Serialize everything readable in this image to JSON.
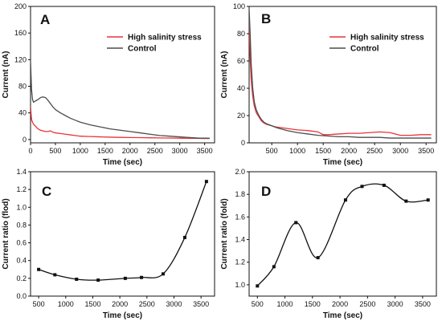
{
  "chart_data": [
    {
      "letter": "A",
      "type": "line",
      "xlabel": "Time (sec)",
      "ylabel": "Current (nA)",
      "xlim": [
        0,
        3700
      ],
      "ylim": [
        -5,
        200
      ],
      "xticks": [
        0,
        500,
        1000,
        1500,
        2000,
        2500,
        3000,
        3500
      ],
      "yticks": [
        0,
        40,
        80,
        120,
        160,
        200
      ],
      "legend_position": "top-right",
      "series": [
        {
          "name": "High salinity stress",
          "color": "#e8343a",
          "x": [
            0,
            20,
            40,
            60,
            100,
            150,
            200,
            250,
            300,
            350,
            400,
            450,
            500,
            600,
            700,
            800,
            900,
            1000,
            1200,
            1400,
            1600,
            1800,
            2000,
            2200,
            2400,
            2600,
            2800,
            3000,
            3200,
            3400,
            3600
          ],
          "y": [
            50,
            30,
            26,
            23,
            20,
            16,
            14,
            13,
            12,
            12,
            13,
            11,
            10,
            9,
            8,
            7,
            6,
            5,
            4.5,
            4,
            3.5,
            3.2,
            3,
            2.8,
            2.6,
            2.4,
            2.2,
            2,
            1.8,
            1.6,
            1.5
          ]
        },
        {
          "name": "Control",
          "color": "#4d4d4d",
          "x": [
            0,
            20,
            40,
            60,
            100,
            150,
            200,
            250,
            300,
            350,
            400,
            450,
            500,
            600,
            700,
            800,
            900,
            1000,
            1200,
            1400,
            1600,
            1800,
            2000,
            2200,
            2400,
            2600,
            2800,
            3000,
            3200,
            3400,
            3600
          ],
          "y": [
            118,
            75,
            60,
            56,
            58,
            60,
            63,
            64,
            63,
            59,
            54,
            49,
            45,
            40,
            36,
            32,
            29,
            26,
            22,
            19,
            16,
            14,
            12,
            10,
            8,
            6,
            5,
            4,
            3,
            2,
            2
          ]
        }
      ]
    },
    {
      "letter": "B",
      "type": "line",
      "xlabel": "Time (sec)",
      "ylabel": "Current (nA)",
      "xlim": [
        60,
        3700
      ],
      "ylim": [
        0,
        100
      ],
      "xticks": [
        500,
        1000,
        1500,
        2000,
        2500,
        3000,
        3500
      ],
      "yticks": [
        0,
        20,
        40,
        60,
        80,
        100
      ],
      "legend_position": "top-right",
      "series": [
        {
          "name": "High salinity stress",
          "color": "#e8343a",
          "x": [
            60,
            80,
            100,
            130,
            160,
            200,
            250,
            300,
            350,
            400,
            500,
            600,
            800,
            1000,
            1200,
            1400,
            1500,
            1600,
            1800,
            2000,
            2200,
            2400,
            2600,
            2800,
            3000,
            3200,
            3400,
            3600
          ],
          "y": [
            90,
            62,
            46,
            34,
            27,
            22,
            19,
            16,
            14.5,
            13.5,
            12.5,
            11.5,
            10.5,
            9.5,
            9,
            8,
            6,
            6,
            6.5,
            7,
            7,
            7.5,
            8,
            7.5,
            5.5,
            5.5,
            6,
            6
          ]
        },
        {
          "name": "Control",
          "color": "#4d4d4d",
          "x": [
            60,
            80,
            100,
            130,
            160,
            200,
            250,
            300,
            350,
            400,
            500,
            600,
            800,
            1000,
            1200,
            1400,
            1600,
            1800,
            2000,
            2200,
            2400,
            2600,
            2800,
            3000,
            3200,
            3400,
            3600
          ],
          "y": [
            98,
            80,
            58,
            40,
            30,
            24,
            20,
            17,
            15,
            14,
            12.5,
            11,
            9,
            7.5,
            6.5,
            5.5,
            5,
            4.5,
            4.5,
            4,
            4,
            4,
            3.5,
            3.5,
            3.5,
            3.5,
            3.5
          ]
        }
      ]
    },
    {
      "letter": "C",
      "type": "line",
      "xlabel": "Time (sec)",
      "ylabel": "Current ratio (flod)",
      "xlim": [
        350,
        3750
      ],
      "ylim": [
        0,
        1.4
      ],
      "xticks": [
        500,
        1000,
        1500,
        2000,
        2500,
        3000,
        3500
      ],
      "yticks": [
        0.0,
        0.2,
        0.4,
        0.6,
        0.8,
        1.0,
        1.2,
        1.4
      ],
      "series": [
        {
          "color": "#111111",
          "x": [
            500,
            800,
            1200,
            1600,
            2100,
            2400,
            2800,
            3200,
            3600
          ],
          "y": [
            0.3,
            0.24,
            0.19,
            0.18,
            0.2,
            0.21,
            0.25,
            0.66,
            1.29
          ]
        }
      ]
    },
    {
      "letter": "D",
      "type": "line",
      "xlabel": "Time (sec)",
      "ylabel": "Current ratio (fold)",
      "xlim": [
        350,
        3750
      ],
      "ylim": [
        0.9,
        2.0
      ],
      "xticks": [
        500,
        1000,
        1500,
        2000,
        2500,
        3000,
        3500
      ],
      "yticks": [
        1.0,
        1.2,
        1.4,
        1.6,
        1.8,
        2.0
      ],
      "series": [
        {
          "color": "#111111",
          "x": [
            500,
            800,
            1200,
            1600,
            2100,
            2400,
            2800,
            3200,
            3600
          ],
          "y": [
            0.99,
            1.16,
            1.55,
            1.24,
            1.75,
            1.87,
            1.88,
            1.74,
            1.75
          ]
        }
      ]
    }
  ]
}
